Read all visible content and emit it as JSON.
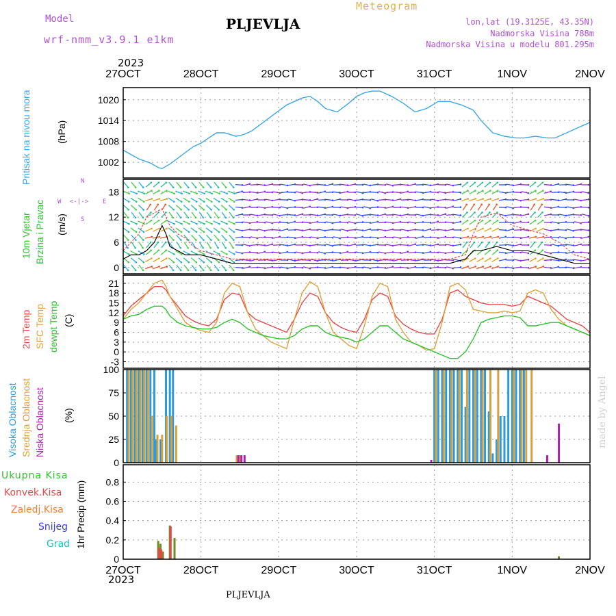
{
  "header": {
    "model_label": "Model",
    "model_name": "wrf-nmm_v3.9.1 e1km",
    "station": "PLJEVLJA",
    "product": "Meteogram",
    "coords": "lon,lat (19.3125E, 43.35N)",
    "altitude": "Nadmorska Visina 788m",
    "model_altitude": "Nadmorska Visina u modelu 801.295m",
    "footer_station": "PLJEVLJA",
    "credit": "made by Angel",
    "year_top": "2023",
    "year_bottom": "2023"
  },
  "colors": {
    "pressure": "#3aa6e6",
    "temp2m": "#e8484a",
    "sfc": "#e0a23a",
    "dew": "#2cc22c",
    "cloud_high": "#2a9be0",
    "cloud_mid": "#d9a03a",
    "cloud_low": "#b020b0",
    "total_precip": "#2cc22c",
    "conv_precip": "#e8484a",
    "frozen": "#f08030",
    "snow": "#3a3ae0",
    "graupel": "#20c0c0",
    "header_purple": "#b050d0",
    "header_orange": "#e0b050"
  },
  "panels": {
    "pressure": {
      "labels": [
        "Pritisak na nivou mora"
      ],
      "unit": "(hPa)"
    },
    "wind": {
      "labels": [
        "10m Vjetar",
        "Brzina i Pravac"
      ],
      "unit": "(m/s)",
      "compass": [
        "N",
        "W",
        "E",
        "S"
      ]
    },
    "temp": {
      "labels": [
        "2m Temp",
        "SFC Temp",
        "dewpt Temp"
      ],
      "unit": "(C)"
    },
    "cloud": {
      "labels": [
        "Visoka Oblacnost",
        "Srednja Oblacnost",
        "Niska Oblacnost"
      ],
      "unit": "(%)"
    },
    "precip": {
      "legend": [
        "Ukupna Kisa",
        "Konvek.Kisa",
        "Zaledj.Kisa",
        "Snijeg",
        "Grad"
      ],
      "unit": "1hr Precip (mm)"
    }
  },
  "chart_data": [
    {
      "type": "line",
      "ylabel": "Pritisak na nivou mora (hPa)",
      "x_ticks": [
        "27OCT",
        "28OCT",
        "29OCT",
        "30OCT",
        "31OCT",
        "1NOV",
        "2NOV"
      ],
      "y_ticks": [
        1002,
        1008,
        1014,
        1020
      ],
      "ylim": [
        997.5,
        1023.5
      ],
      "xlim": [
        0,
        6
      ],
      "grid": true,
      "series": [
        {
          "name": "Pritisak na nivou mora",
          "x": [
            0,
            0.08,
            0.2,
            0.35,
            0.45,
            0.5,
            0.6,
            0.75,
            0.9,
            1.0,
            1.1,
            1.2,
            1.3,
            1.45,
            1.55,
            1.65,
            1.8,
            1.95,
            2.1,
            2.2,
            2.3,
            2.4,
            2.5,
            2.6,
            2.75,
            2.9,
            3.0,
            3.1,
            3.2,
            3.3,
            3.45,
            3.6,
            3.75,
            3.9,
            4.05,
            4.2,
            4.35,
            4.5,
            4.6,
            4.75,
            4.9,
            5.05,
            5.15,
            5.3,
            5.45,
            5.55,
            5.7,
            5.85,
            6.0
          ],
          "y": [
            1005.5,
            1004.5,
            1003,
            1001.8,
            1000.5,
            1000.2,
            1001.5,
            1004,
            1006.5,
            1007.5,
            1009,
            1010.5,
            1010.5,
            1009.5,
            1010,
            1011,
            1013.5,
            1016,
            1018.5,
            1019.5,
            1020.5,
            1021,
            1019.5,
            1017.5,
            1016.5,
            1019,
            1021,
            1022,
            1022.5,
            1022.5,
            1021,
            1019,
            1016.5,
            1017.5,
            1019.5,
            1019.5,
            1018.5,
            1017,
            1014,
            1010.5,
            1009.5,
            1009,
            1009,
            1009.5,
            1009,
            1009,
            1010.5,
            1012,
            1013.5
          ]
        }
      ]
    },
    {
      "type": "line",
      "ylabel": "10m Vjetar Brzina i Pravac (m/s)",
      "x_ticks": [
        "27OCT",
        "28OCT",
        "29OCT",
        "30OCT",
        "31OCT",
        "1NOV",
        "2NOV"
      ],
      "y_ticks": [
        0,
        6,
        12,
        18
      ],
      "ylim": [
        -1.5,
        21
      ],
      "xlim": [
        0,
        6
      ],
      "grid": true,
      "series": [
        {
          "name": "Brzina",
          "x": [
            0,
            0.1,
            0.2,
            0.3,
            0.4,
            0.5,
            0.55,
            0.6,
            0.7,
            0.8,
            0.9,
            1.0,
            1.2,
            1.4,
            1.5,
            1.6,
            1.8,
            2.0,
            2.2,
            2.4,
            2.6,
            2.8,
            3.0,
            3.2,
            3.4,
            3.6,
            3.8,
            4.0,
            4.2,
            4.4,
            4.5,
            4.6,
            4.8,
            5.0,
            5.1,
            5.2,
            5.4,
            5.6,
            5.8,
            6.0
          ],
          "y": [
            2,
            3,
            3,
            4,
            6,
            10,
            8,
            5,
            4,
            3,
            3,
            3,
            2,
            1,
            1,
            1,
            1,
            1,
            1,
            1,
            1,
            1,
            1,
            1,
            1,
            1,
            1,
            1,
            1,
            2,
            4,
            4,
            5,
            4,
            4,
            4,
            3,
            2,
            1,
            1
          ]
        },
        {
          "name": "Udari",
          "x": [
            0,
            0.1,
            0.2,
            0.3,
            0.4,
            0.5,
            0.55,
            0.6,
            0.7,
            0.8,
            0.9,
            1.0,
            1.2,
            1.4,
            1.6,
            1.8,
            2.0,
            2.2,
            2.4,
            2.6,
            2.8,
            3.0,
            3.2,
            3.4,
            3.6,
            3.8,
            4.0,
            4.2,
            4.4,
            4.5,
            4.6,
            4.8,
            5.0,
            5.2,
            5.4,
            5.6,
            5.8,
            6.0
          ],
          "y": [
            4,
            6,
            8,
            12,
            13,
            14,
            12,
            10,
            8,
            7,
            5,
            4,
            3,
            2,
            2,
            2,
            2,
            2,
            2,
            2,
            2,
            2,
            2,
            2,
            2,
            2,
            2,
            2,
            3,
            8,
            12,
            13,
            10,
            9,
            8,
            6,
            3,
            2
          ]
        }
      ]
    },
    {
      "type": "line",
      "ylabel": "2m Temp / SFC Temp / dewpt Temp (C)",
      "x_ticks": [
        "27OCT",
        "28OCT",
        "29OCT",
        "30OCT",
        "31OCT",
        "1NOV",
        "2NOV"
      ],
      "y_ticks": [
        -3,
        0,
        3,
        6,
        9,
        12,
        15,
        18,
        21
      ],
      "ylim": [
        -5,
        23.5
      ],
      "xlim": [
        0,
        6
      ],
      "grid": true,
      "series": [
        {
          "name": "2m Temp",
          "x": [
            0,
            0.1,
            0.2,
            0.3,
            0.4,
            0.5,
            0.55,
            0.6,
            0.7,
            0.8,
            0.9,
            1.0,
            1.1,
            1.2,
            1.3,
            1.4,
            1.5,
            1.6,
            1.7,
            1.8,
            1.9,
            2.0,
            2.1,
            2.2,
            2.3,
            2.4,
            2.5,
            2.6,
            2.7,
            2.8,
            2.9,
            3.0,
            3.1,
            3.2,
            3.3,
            3.4,
            3.5,
            3.6,
            3.7,
            3.8,
            3.9,
            4.0,
            4.1,
            4.2,
            4.3,
            4.4,
            4.5,
            4.6,
            4.7,
            4.8,
            4.9,
            5.0,
            5.1,
            5.2,
            5.3,
            5.4,
            5.5,
            5.6,
            5.7,
            5.8,
            5.9,
            6.0
          ],
          "y": [
            11,
            14,
            16,
            18,
            20,
            20,
            19,
            17,
            14,
            11,
            9.5,
            8.5,
            8,
            10,
            16,
            18,
            17.5,
            12,
            10,
            9,
            8,
            7,
            6,
            10,
            15,
            18,
            17,
            12,
            9,
            7.5,
            6.5,
            6,
            10,
            16,
            18,
            17,
            11,
            8.5,
            7,
            6,
            5.5,
            5.5,
            10,
            18,
            19,
            17,
            16,
            15,
            14.5,
            14.5,
            14.5,
            14,
            14.5,
            17,
            16,
            15,
            14,
            12,
            10,
            9,
            8,
            6
          ]
        },
        {
          "name": "SFC Temp",
          "x": [
            0,
            0.1,
            0.2,
            0.3,
            0.4,
            0.5,
            0.55,
            0.6,
            0.7,
            0.8,
            0.9,
            1.0,
            1.1,
            1.2,
            1.3,
            1.4,
            1.5,
            1.6,
            1.7,
            1.8,
            1.9,
            2.0,
            2.1,
            2.2,
            2.3,
            2.4,
            2.5,
            2.6,
            2.7,
            2.8,
            2.9,
            3.0,
            3.1,
            3.2,
            3.3,
            3.4,
            3.5,
            3.6,
            3.7,
            3.8,
            3.9,
            4.0,
            4.1,
            4.2,
            4.3,
            4.4,
            4.5,
            4.6,
            4.7,
            4.8,
            4.9,
            5.0,
            5.1,
            5.2,
            5.3,
            5.4,
            5.5,
            5.6,
            5.7,
            5.8,
            5.9,
            6.0
          ],
          "y": [
            10,
            13,
            15,
            18,
            21,
            22,
            20,
            17,
            13,
            9,
            7.5,
            6.5,
            6,
            9,
            18,
            21,
            20,
            12,
            7,
            5,
            3,
            2,
            1,
            10,
            18,
            21.5,
            20,
            12,
            6,
            4,
            2,
            1,
            8,
            17,
            21,
            20,
            10,
            6,
            3,
            2,
            0.5,
            1,
            9,
            20,
            21,
            19,
            13,
            12.5,
            12,
            12,
            12.5,
            12,
            12.5,
            18,
            19,
            18,
            13,
            10,
            8,
            7,
            6,
            5
          ]
        },
        {
          "name": "dewpt Temp",
          "x": [
            0,
            0.1,
            0.2,
            0.3,
            0.4,
            0.5,
            0.55,
            0.6,
            0.7,
            0.8,
            0.9,
            1.0,
            1.1,
            1.2,
            1.3,
            1.4,
            1.5,
            1.6,
            1.7,
            1.8,
            1.9,
            2.0,
            2.1,
            2.2,
            2.3,
            2.4,
            2.5,
            2.6,
            2.7,
            2.8,
            2.9,
            3.0,
            3.1,
            3.2,
            3.3,
            3.4,
            3.5,
            3.6,
            3.7,
            3.8,
            3.9,
            4.0,
            4.1,
            4.2,
            4.3,
            4.4,
            4.5,
            4.6,
            4.7,
            4.8,
            4.9,
            5.0,
            5.1,
            5.2,
            5.3,
            5.4,
            5.5,
            5.6,
            5.7,
            5.8,
            5.9,
            6.0
          ],
          "y": [
            10,
            11,
            11.5,
            13,
            14,
            14,
            13,
            11,
            9,
            8,
            7.5,
            7,
            7,
            7.5,
            9,
            10,
            9,
            7,
            6,
            5,
            4.5,
            4,
            4,
            5,
            7,
            8,
            8,
            6,
            5,
            4.5,
            4,
            3,
            4,
            6,
            8,
            8,
            6,
            4,
            3,
            2,
            1,
            0,
            -1,
            -2,
            -2,
            0,
            4,
            9,
            10,
            10.5,
            11,
            11,
            10.5,
            8,
            8,
            8.5,
            9,
            9,
            8,
            7,
            6,
            5
          ]
        }
      ]
    },
    {
      "type": "bar",
      "ylabel": "Oblacnost (%)",
      "x_ticks": [
        "27OCT",
        "28OCT",
        "29OCT",
        "30OCT",
        "31OCT",
        "1NOV",
        "2NOV"
      ],
      "y_ticks": [
        0,
        25,
        50,
        75,
        100
      ],
      "ylim": [
        0,
        100
      ],
      "xlim": [
        0,
        6
      ],
      "grid": true,
      "series": [
        {
          "name": "Visoka Oblacnost",
          "x": [
            0.05,
            0.1,
            0.15,
            0.2,
            0.25,
            0.3,
            0.35,
            0.4,
            0.42,
            0.48,
            0.55,
            0.6,
            0.64,
            4.0,
            4.05,
            4.1,
            4.15,
            4.2,
            4.25,
            4.3,
            4.35,
            4.4,
            4.45,
            4.5,
            4.55,
            4.6,
            4.65,
            4.7,
            4.75,
            4.8,
            4.85,
            4.9,
            4.95,
            5.0,
            5.05,
            5.1,
            5.15
          ],
          "y": [
            100,
            100,
            100,
            100,
            100,
            100,
            100,
            100,
            25,
            25,
            100,
            100,
            100,
            100,
            100,
            100,
            100,
            100,
            100,
            100,
            100,
            60,
            100,
            100,
            100,
            100,
            100,
            55,
            10,
            25,
            50,
            50,
            100,
            100,
            100,
            100,
            100
          ]
        },
        {
          "name": "Srednja Oblacnost",
          "x": [
            0.07,
            0.12,
            0.17,
            0.22,
            0.27,
            0.32,
            0.37,
            0.44,
            0.5,
            0.56,
            0.62,
            0.68,
            1.46,
            1.5,
            4.02,
            4.12,
            4.22,
            4.32,
            4.42,
            4.52,
            4.62,
            4.72,
            4.82,
            5.02,
            5.12,
            5.18,
            5.25
          ],
          "y": [
            100,
            100,
            100,
            100,
            100,
            100,
            50,
            30,
            30,
            50,
            50,
            40,
            8,
            8,
            100,
            100,
            100,
            100,
            100,
            100,
            100,
            100,
            100,
            100,
            100,
            100,
            100
          ]
        },
        {
          "name": "Niska Oblacnost",
          "x": [
            1.48,
            1.52,
            1.56,
            3.96,
            5.45,
            5.6
          ],
          "y": [
            8,
            8,
            8,
            3,
            8,
            42
          ]
        }
      ]
    },
    {
      "type": "bar",
      "ylabel": "1hr Precip (mm)",
      "x_ticks": [
        "27OCT",
        "28OCT",
        "29OCT",
        "30OCT",
        "31OCT",
        "1NOV",
        "2NOV"
      ],
      "y_ticks": [
        0,
        0.2,
        0.4,
        0.6,
        0.8
      ],
      "ylim": [
        0,
        0.98
      ],
      "xlim": [
        0,
        6
      ],
      "grid": true,
      "series": [
        {
          "name": "Ukupna Kisa",
          "x": [
            0.45,
            0.48,
            0.51,
            0.6,
            0.66,
            5.6
          ],
          "y": [
            0.19,
            0.16,
            0.08,
            0.35,
            0.22,
            0.03
          ]
        },
        {
          "name": "Konvek.Kisa",
          "x": [
            0.46,
            0.49,
            0.61
          ],
          "y": [
            0.12,
            0.1,
            0.34
          ]
        },
        {
          "name": "Zaledj.Kisa",
          "x": [],
          "y": []
        },
        {
          "name": "Snijeg",
          "x": [],
          "y": []
        },
        {
          "name": "Grad",
          "x": [],
          "y": []
        }
      ]
    }
  ]
}
